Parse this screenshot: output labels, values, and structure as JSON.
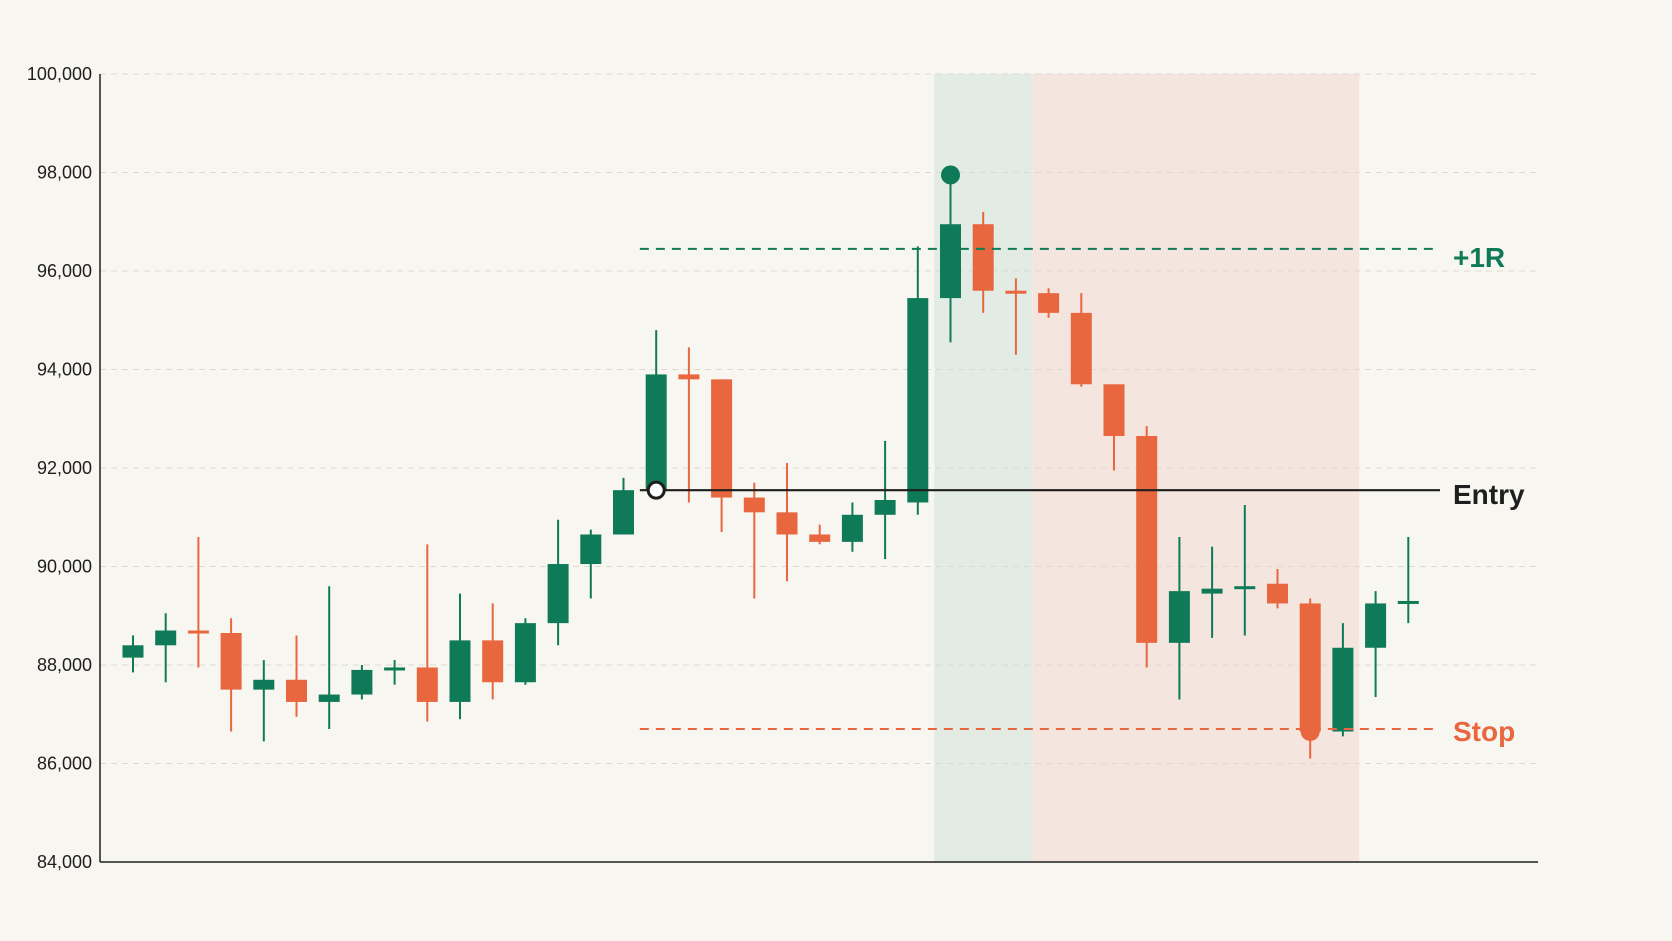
{
  "chart_data": {
    "type": "candlestick",
    "title": "",
    "xlabel": "",
    "ylabel": "",
    "ylim": [
      84000,
      100000
    ],
    "y_ticks": [
      "100,000",
      "98,000",
      "96,000",
      "94,000",
      "92,000",
      "90,000",
      "88,000",
      "86,000",
      "84,000"
    ],
    "grid": "horizontal-dashed",
    "colors": {
      "up": "#0f7a57",
      "down": "#e8673f",
      "entry": "#1e1e1e",
      "target": "#0f7a57",
      "stop": "#e8673f",
      "zone_green": "#e3ebe5",
      "zone_red": "#f5e5df",
      "background": "#f8f6f1"
    },
    "candles": [
      {
        "open": 88150,
        "high": 88600,
        "low": 87850,
        "close": 88400
      },
      {
        "open": 88400,
        "high": 89050,
        "low": 87650,
        "close": 88700
      },
      {
        "open": 88700,
        "high": 90600,
        "low": 87950,
        "close": 88650
      },
      {
        "open": 88650,
        "high": 88950,
        "low": 86650,
        "close": 87500
      },
      {
        "open": 87500,
        "high": 88100,
        "low": 86450,
        "close": 87700
      },
      {
        "open": 87700,
        "high": 88600,
        "low": 86950,
        "close": 87250
      },
      {
        "open": 87250,
        "high": 89600,
        "low": 86700,
        "close": 87400
      },
      {
        "open": 87400,
        "high": 88000,
        "low": 87300,
        "close": 87900
      },
      {
        "open": 87900,
        "high": 88100,
        "low": 87600,
        "close": 87950
      },
      {
        "open": 87950,
        "high": 90450,
        "low": 86850,
        "close": 87250
      },
      {
        "open": 87250,
        "high": 89450,
        "low": 86900,
        "close": 88500
      },
      {
        "open": 88500,
        "high": 89250,
        "low": 87300,
        "close": 87650
      },
      {
        "open": 87650,
        "high": 88950,
        "low": 87600,
        "close": 88850
      },
      {
        "open": 88850,
        "high": 90950,
        "low": 88400,
        "close": 90050
      },
      {
        "open": 90050,
        "high": 90750,
        "low": 89350,
        "close": 90650
      },
      {
        "open": 90650,
        "high": 91800,
        "low": 90650,
        "close": 91550
      },
      {
        "open": 91550,
        "high": 94800,
        "low": 91550,
        "close": 93900
      },
      {
        "open": 93900,
        "high": 94450,
        "low": 91300,
        "close": 93800
      },
      {
        "open": 93800,
        "high": 93800,
        "low": 90700,
        "close": 91400
      },
      {
        "open": 91400,
        "high": 91700,
        "low": 89350,
        "close": 91100
      },
      {
        "open": 91100,
        "high": 92100,
        "low": 89700,
        "close": 90650
      },
      {
        "open": 90650,
        "high": 90850,
        "low": 90450,
        "close": 90500
      },
      {
        "open": 90500,
        "high": 91300,
        "low": 90300,
        "close": 91050
      },
      {
        "open": 91050,
        "high": 92550,
        "low": 90150,
        "close": 91350
      },
      {
        "open": 91300,
        "high": 96500,
        "low": 91050,
        "close": 95450
      },
      {
        "open": 95450,
        "high": 97800,
        "low": 94550,
        "close": 96950
      },
      {
        "open": 96950,
        "high": 97200,
        "low": 95150,
        "close": 95600
      },
      {
        "open": 95600,
        "high": 95850,
        "low": 94300,
        "close": 95550
      },
      {
        "open": 95550,
        "high": 95650,
        "low": 95050,
        "close": 95150
      },
      {
        "open": 95150,
        "high": 95550,
        "low": 93650,
        "close": 93700
      },
      {
        "open": 93700,
        "high": 93700,
        "low": 91950,
        "close": 92650
      },
      {
        "open": 92650,
        "high": 92850,
        "low": 87950,
        "close": 88450
      },
      {
        "open": 88450,
        "high": 90600,
        "low": 87300,
        "close": 89500
      },
      {
        "open": 89450,
        "high": 90400,
        "low": 88550,
        "close": 89550
      },
      {
        "open": 89550,
        "high": 91250,
        "low": 88600,
        "close": 89600
      },
      {
        "open": 89650,
        "high": 89950,
        "low": 89150,
        "close": 89250
      },
      {
        "open": 89250,
        "high": 89350,
        "low": 86100,
        "close": 86650
      },
      {
        "open": 86650,
        "high": 88850,
        "low": 86550,
        "close": 88350
      },
      {
        "open": 88350,
        "high": 89500,
        "low": 87350,
        "close": 89250
      },
      {
        "open": 89250,
        "high": 90600,
        "low": 88850,
        "close": 89300
      }
    ],
    "entry": {
      "label": "Entry",
      "value": 91550,
      "start_index": 15.5,
      "marker_index": 16
    },
    "target": {
      "label": "+1R",
      "value": 96450,
      "start_index": 15.5
    },
    "stop": {
      "label": "Stop",
      "value": 86700,
      "start_index": 15.5
    },
    "zones": [
      {
        "kind": "favorable",
        "from_index": 24.5,
        "to_index": 27.5
      },
      {
        "kind": "adverse",
        "from_index": 27.5,
        "to_index": 37.5
      }
    ],
    "markers": [
      {
        "kind": "high",
        "index": 25,
        "value": 97950,
        "color": "#0f7a57"
      },
      {
        "kind": "stop-hit",
        "index": 36,
        "value": 86650,
        "color": "#e8673f"
      }
    ]
  }
}
